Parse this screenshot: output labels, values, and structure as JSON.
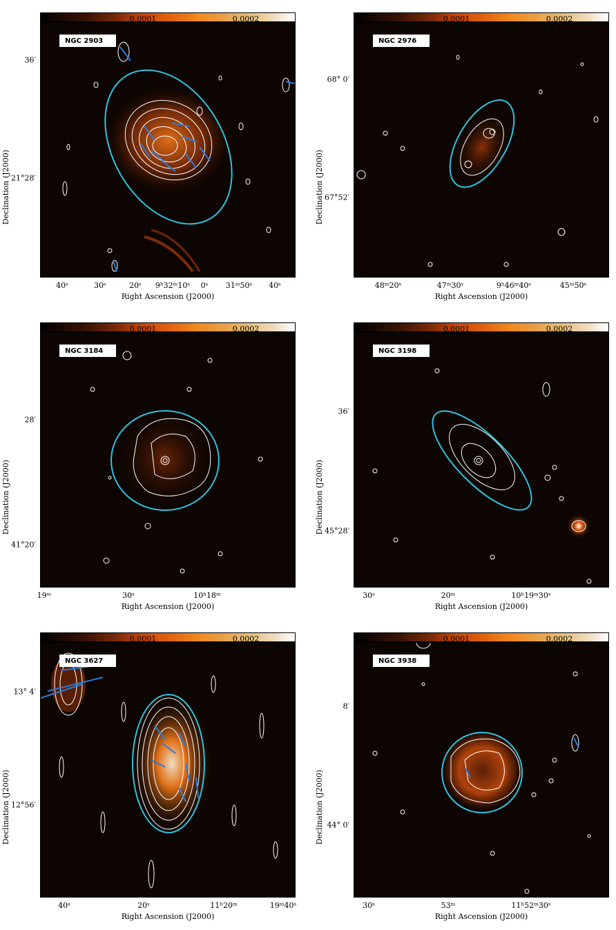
{
  "colorbar": {
    "ticks": [
      "0.0001",
      "0.0002"
    ]
  },
  "axis_labels": {
    "x": "Right Ascension (J2000)",
    "y": "Declination (J2000)"
  },
  "panels": [
    {
      "name": "NGC 2903",
      "yticks": [
        "36′",
        "21°28′"
      ],
      "xticks": [
        "40ˢ",
        "30ˢ",
        "20ˢ",
        "9ʰ32ᵐ10ˢ",
        "0ˢ",
        "31ᵐ50ˢ",
        "40ˢ"
      ]
    },
    {
      "name": "NGC 2976",
      "yticks": [
        "68° 0′",
        "67°52′"
      ],
      "xticks": [
        "48ᵐ20ˢ",
        "47ᵐ30ˢ",
        "9ʰ46ᵐ40ˢ",
        "45ᵐ50ˢ"
      ]
    },
    {
      "name": "NGC 3184",
      "yticks": [
        "28′",
        "41°20′"
      ],
      "xticks": [
        "19ᵐ",
        "30ˢ",
        "10ʰ18ᵐ"
      ]
    },
    {
      "name": "NGC 3198",
      "yticks": [
        "36′",
        "45°28′"
      ],
      "xticks": [
        "30ˢ",
        "20ᵐ",
        "10ʰ19ᵐ30ˢ"
      ]
    },
    {
      "name": "NGC 3627",
      "yticks": [
        "13° 4′",
        "12°56′"
      ],
      "xticks": [
        "40ˢ",
        "20ˢ",
        "11ʰ20ᵐ",
        "19ᵐ40ˢ"
      ]
    },
    {
      "name": "NGC 3938",
      "yticks": [
        "8′",
        "44° 0′"
      ],
      "xticks": [
        "30ˢ",
        "53ᵐ",
        "11ʰ52ᵐ30ˢ"
      ]
    }
  ],
  "colors": {
    "ellipse": "#2ec4e0",
    "vectors": "#2a7be0",
    "contours": "#ffffff",
    "emission": "#c8470c"
  }
}
